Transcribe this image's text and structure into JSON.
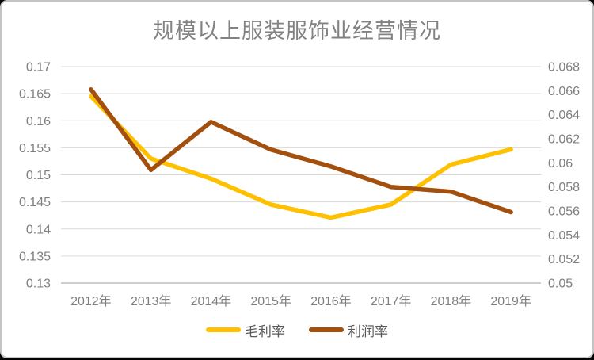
{
  "chart": {
    "title": "规模以上服装服饰业经营情况"
  },
  "chart_data": {
    "type": "line",
    "title": "规模以上服装服饰业经营情况",
    "categories": [
      "2012年",
      "2013年",
      "2014年",
      "2015年",
      "2016年",
      "2017年",
      "2018年",
      "2019年"
    ],
    "series": [
      {
        "name": "毛利率",
        "axis": "left",
        "color": "#FFC000",
        "values": [
          0.1645,
          0.153,
          0.1493,
          0.1445,
          0.1421,
          0.1445,
          0.1519,
          0.1547
        ]
      },
      {
        "name": "利润率",
        "axis": "right",
        "color": "#A3500F",
        "values": [
          0.0661,
          0.0594,
          0.0634,
          0.0611,
          0.0597,
          0.058,
          0.0576,
          0.0559
        ]
      }
    ],
    "left_axis": {
      "min": 0.13,
      "max": 0.17,
      "tick_labels": [
        "0.17",
        "0.165",
        "0.16",
        "0.155",
        "0.15",
        "0.145",
        "0.14",
        "0.135",
        "0.13"
      ]
    },
    "right_axis": {
      "min": 0.05,
      "max": 0.068,
      "tick_labels": [
        "0.068",
        "0.066",
        "0.064",
        "0.062",
        "0.06",
        "0.058",
        "0.056",
        "0.054",
        "0.052",
        "0.05"
      ]
    },
    "grid": true,
    "legend_position": "bottom",
    "colors": {
      "gridline": "#D9D9D9",
      "axis_line": "#BFBFBF",
      "axis_text": "#7F7F7F",
      "title_text": "#828282",
      "legend_text": "#595959"
    }
  }
}
